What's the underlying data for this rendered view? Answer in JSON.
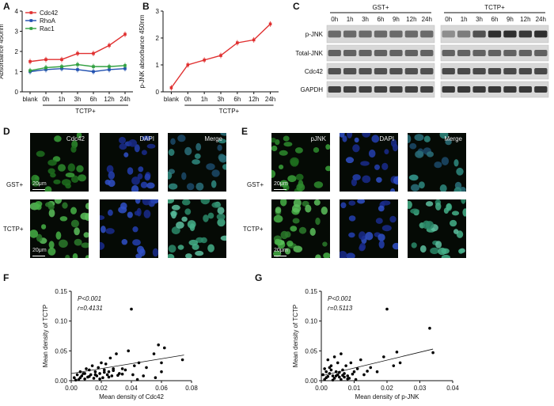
{
  "panel_labels": [
    "A",
    "B",
    "C",
    "D",
    "E",
    "F",
    "G"
  ],
  "chart_data": [
    {
      "panel": "A",
      "type": "line",
      "ylabel": "Absorbance 450nm",
      "categories": [
        "blank",
        "0h",
        "1h",
        "3h",
        "6h",
        "12h",
        "24h"
      ],
      "group_label": "TCTP+",
      "ylim": [
        0,
        4
      ],
      "yticks": [
        0,
        1,
        2,
        3,
        4
      ],
      "series": [
        {
          "name": "Cdc42",
          "color": "#e03030",
          "values": [
            1.5,
            1.6,
            1.6,
            1.9,
            1.9,
            2.3,
            2.85
          ]
        },
        {
          "name": "RhoA",
          "color": "#2050b0",
          "values": [
            1.0,
            1.1,
            1.15,
            1.1,
            1.0,
            1.1,
            1.15
          ]
        },
        {
          "name": "Rac1",
          "color": "#30a040",
          "values": [
            1.05,
            1.2,
            1.25,
            1.35,
            1.25,
            1.25,
            1.3
          ]
        }
      ]
    },
    {
      "panel": "B",
      "type": "line",
      "ylabel": "p-JNK absorbance 450nm",
      "categories": [
        "blank",
        "0h",
        "1h",
        "3h",
        "6h",
        "12h",
        "24h"
      ],
      "group_label": "TCTP+",
      "ylim": [
        0,
        3
      ],
      "yticks": [
        0,
        1,
        2,
        3
      ],
      "series": [
        {
          "name": "p-JNK",
          "color": "#e03030",
          "values": [
            0.15,
            1.0,
            1.18,
            1.35,
            1.82,
            1.93,
            2.52
          ]
        }
      ]
    },
    {
      "panel": "F",
      "type": "scatter",
      "xlabel": "Mean density of Cdc42",
      "ylabel": "Mean density of TCTP",
      "annotation_p": "P<0.001",
      "annotation_r": "r=0.4131",
      "xlim": [
        0,
        0.08
      ],
      "ylim": [
        0,
        0.15
      ],
      "xticks": [
        "0.00",
        "0.02",
        "0.04",
        "0.06",
        "0.08"
      ],
      "yticks": [
        "0.00",
        "0.05",
        "0.10",
        "0.15"
      ],
      "trend": [
        [
          0,
          0.012
        ],
        [
          0.075,
          0.043
        ]
      ],
      "x": [
        0.002,
        0.004,
        0.005,
        0.006,
        0.007,
        0.008,
        0.009,
        0.01,
        0.011,
        0.012,
        0.013,
        0.014,
        0.015,
        0.016,
        0.017,
        0.018,
        0.019,
        0.02,
        0.021,
        0.022,
        0.023,
        0.024,
        0.025,
        0.026,
        0.027,
        0.028,
        0.03,
        0.032,
        0.034,
        0.036,
        0.038,
        0.04,
        0.041,
        0.042,
        0.045,
        0.048,
        0.05,
        0.055,
        0.056,
        0.058,
        0.06,
        0.06,
        0.062,
        0.074,
        0.003,
        0.006,
        0.009,
        0.012,
        0.016,
        0.019,
        0.022,
        0.025,
        0.028,
        0.031,
        0.034,
        0.044
      ],
      "y": [
        0.005,
        0.01,
        0.002,
        0.015,
        0.008,
        0.012,
        0.003,
        0.02,
        0.006,
        0.018,
        0.01,
        0.025,
        0.004,
        0.015,
        0.008,
        0.022,
        0.012,
        0.03,
        0.005,
        0.018,
        0.028,
        0.01,
        0.015,
        0.038,
        0.008,
        0.02,
        0.045,
        0.012,
        0.02,
        0.018,
        0.05,
        0.12,
        0.01,
        0.025,
        0.03,
        0.008,
        0.022,
        0.045,
        0.005,
        0.06,
        0.015,
        0.03,
        0.055,
        0.035,
        0.001,
        0.005,
        0.012,
        0.007,
        0.01,
        0.003,
        0.014,
        0.006,
        0.017,
        0.009,
        0.011,
        0.002
      ]
    },
    {
      "panel": "G",
      "type": "scatter",
      "xlabel": "Mean density of p-JNK",
      "ylabel": "Mean density of TCTP",
      "annotation_p": "P<0.001",
      "annotation_r": "r=0.5113",
      "xlim": [
        0,
        0.04
      ],
      "ylim": [
        0,
        0.15
      ],
      "xticks": [
        "0.00",
        "0.01",
        "0.02",
        "0.03",
        "0.04"
      ],
      "yticks": [
        "0.00",
        "0.05",
        "0.10",
        "0.15"
      ],
      "trend": [
        [
          0,
          0.008
        ],
        [
          0.034,
          0.053
        ]
      ],
      "x": [
        0.0005,
        0.001,
        0.0015,
        0.002,
        0.0025,
        0.003,
        0.0035,
        0.004,
        0.0045,
        0.005,
        0.0055,
        0.006,
        0.0065,
        0.007,
        0.0075,
        0.008,
        0.009,
        0.01,
        0.011,
        0.012,
        0.013,
        0.015,
        0.017,
        0.019,
        0.02,
        0.022,
        0.023,
        0.024,
        0.033,
        0.034,
        0.001,
        0.002,
        0.003,
        0.004,
        0.005,
        0.006,
        0.007,
        0.008,
        0.0015,
        0.0025,
        0.0035,
        0.0045,
        0.0055,
        0.0065,
        0.0085,
        0.0095,
        0.0105,
        0.014
      ],
      "y": [
        0.01,
        0.02,
        0.005,
        0.035,
        0.012,
        0.025,
        0.008,
        0.04,
        0.015,
        0.03,
        0.006,
        0.045,
        0.018,
        0.012,
        0.025,
        0.008,
        0.03,
        0.015,
        0.02,
        0.035,
        0.01,
        0.022,
        0.015,
        0.04,
        0.12,
        0.025,
        0.048,
        0.03,
        0.088,
        0.047,
        0.002,
        0.007,
        0.018,
        0.004,
        0.01,
        0.002,
        0.006,
        0.003,
        0.015,
        0.022,
        0.001,
        0.008,
        0.014,
        0.009,
        0.004,
        0.011,
        0.002,
        0.016
      ]
    }
  ],
  "western_blot": {
    "title_left": "GST+",
    "title_right": "TCTP+",
    "timepoints_left": [
      "0h",
      "1h",
      "3h",
      "6h",
      "9h",
      "12h",
      "24h"
    ],
    "timepoints_right": [
      "0h",
      "1h",
      "3h",
      "6h",
      "9h",
      "12h",
      "24h"
    ],
    "rows": [
      {
        "label": "p-JNK",
        "left_levels": [
          0.55,
          0.55,
          0.55,
          0.55,
          0.55,
          0.55,
          0.55
        ],
        "right_levels": [
          0.35,
          0.45,
          0.7,
          0.9,
          0.9,
          0.85,
          0.9
        ]
      },
      {
        "label": "Total-JNK",
        "left_levels": [
          0.6,
          0.6,
          0.6,
          0.6,
          0.6,
          0.6,
          0.6
        ],
        "right_levels": [
          0.6,
          0.6,
          0.6,
          0.6,
          0.6,
          0.6,
          0.6
        ]
      },
      {
        "label": "Cdc42",
        "left_levels": [
          0.7,
          0.7,
          0.7,
          0.7,
          0.7,
          0.7,
          0.7
        ],
        "right_levels": [
          0.75,
          0.75,
          0.75,
          0.75,
          0.75,
          0.75,
          0.75
        ]
      },
      {
        "label": "GAPDH",
        "left_levels": [
          0.8,
          0.8,
          0.8,
          0.8,
          0.8,
          0.8,
          0.8
        ],
        "right_levels": [
          0.85,
          0.85,
          0.85,
          0.85,
          0.85,
          0.85,
          0.85
        ]
      }
    ]
  },
  "panel_D": {
    "columns": [
      "Cdc42",
      "DAPI",
      "Merge"
    ],
    "rows": [
      "GST+",
      "TCTP+"
    ],
    "scale_bar": "20μm"
  },
  "panel_E": {
    "columns": [
      "pJNK",
      "DAPI",
      "Merge"
    ],
    "rows": [
      "GST+",
      "TCTP+"
    ],
    "scale_bar": "20μm"
  }
}
